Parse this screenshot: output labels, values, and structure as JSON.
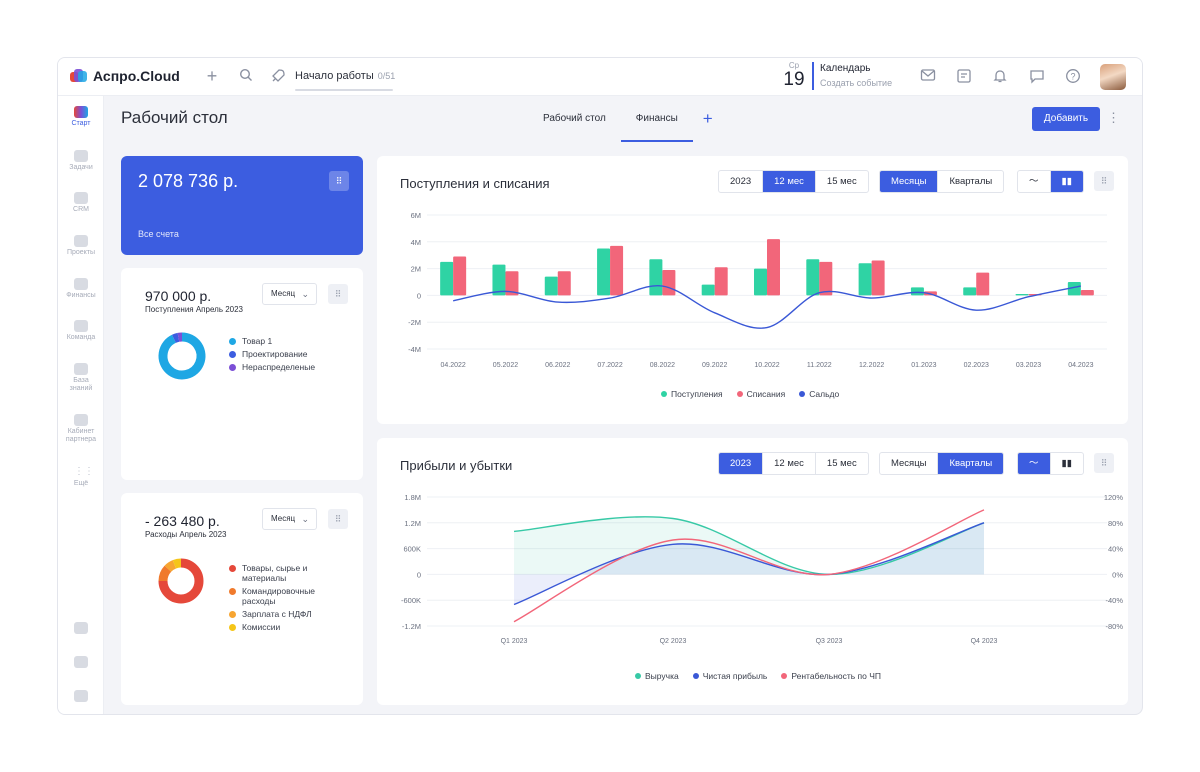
{
  "header": {
    "logo_text": "Аспро.Cloud",
    "start_label": "Начало работы",
    "start_count": "0/51",
    "calendar": {
      "weekday": "Ср",
      "day": "19",
      "title": "Календарь",
      "subtitle": "Создать событие"
    }
  },
  "sidebar": {
    "items": [
      {
        "label": "Старт",
        "icon": "start-icon"
      },
      {
        "label": "Задачи",
        "icon": "tasks-icon"
      },
      {
        "label": "CRM",
        "icon": "crm-icon"
      },
      {
        "label": "Проекты",
        "icon": "projects-icon"
      },
      {
        "label": "Финансы",
        "icon": "finance-icon"
      },
      {
        "label": "Команда",
        "icon": "team-icon"
      },
      {
        "label": "База знаний",
        "icon": "knowledge-icon"
      },
      {
        "label": "Кабинет партнера",
        "icon": "partner-icon"
      },
      {
        "label": "Ещё",
        "icon": "more-icon"
      }
    ]
  },
  "page": {
    "title": "Рабочий стол",
    "tabs": [
      "Рабочий стол",
      "Финансы"
    ],
    "active_tab": 1,
    "add_button": "Добавить"
  },
  "accounts_card": {
    "amount": "2 078 736 р.",
    "label": "Все счета"
  },
  "income_card": {
    "amount": "970 000 р.",
    "subtitle": "Поступления Апрель 2023",
    "period": "Месяц",
    "legend": [
      {
        "label": "Товар 1",
        "color": "#1ea7e4",
        "share": 0.93
      },
      {
        "label": "Проектирование",
        "color": "#3c5de0",
        "share": 0.04
      },
      {
        "label": "Нераспределеные",
        "color": "#7b4fd6",
        "share": 0.03
      }
    ]
  },
  "expense_card": {
    "amount": "- 263 480 р.",
    "subtitle": "Расходы Апрель 2023",
    "period": "Месяц",
    "legend": [
      {
        "label": "Товары, сырье и материалы",
        "color": "#e5483a",
        "share": 0.75
      },
      {
        "label": "Командировочные расходы",
        "color": "#f07a2c",
        "share": 0.12
      },
      {
        "label": "Зарплата с НДФЛ",
        "color": "#f7a531",
        "share": 0.07
      },
      {
        "label": "Комиссии",
        "color": "#f5c518",
        "share": 0.06
      }
    ]
  },
  "cashflow": {
    "title": "Поступления и списания",
    "period_options": [
      "2023",
      "12 мес",
      "15 мес"
    ],
    "period_active": 1,
    "group_options": [
      "Месяцы",
      "Кварталы"
    ],
    "group_active": 0,
    "view_active": "bar"
  },
  "profit": {
    "title": "Прибыли и убытки",
    "period_options": [
      "2023",
      "12 мес",
      "15 мес"
    ],
    "period_active": 0,
    "group_options": [
      "Месяцы",
      "Кварталы"
    ],
    "group_active": 1,
    "view_active": "line"
  },
  "chart_data": [
    {
      "type": "bar",
      "title": "Поступления и списания",
      "categories": [
        "04.2022",
        "05.2022",
        "06.2022",
        "07.2022",
        "08.2022",
        "09.2022",
        "10.2022",
        "11.2022",
        "12.2022",
        "01.2023",
        "02.2023",
        "03.2023",
        "04.2023"
      ],
      "yticks": [
        "6M",
        "4M",
        "2M",
        "0",
        "-2M",
        "-4M"
      ],
      "ylim": [
        -4,
        6
      ],
      "series": [
        {
          "name": "Поступления",
          "color": "#2fd3a4",
          "values": [
            2.5,
            2.3,
            1.4,
            3.5,
            2.7,
            0.8,
            2.0,
            2.7,
            2.4,
            0.6,
            0.6,
            0.1,
            1.0
          ]
        },
        {
          "name": "Списания",
          "color": "#f2667a",
          "values": [
            2.9,
            1.8,
            1.8,
            3.7,
            1.9,
            2.1,
            4.2,
            2.5,
            2.6,
            0.3,
            1.7,
            0.1,
            0.4
          ]
        },
        {
          "name": "Сальдо",
          "color": "#3a58d6",
          "type": "line",
          "values": [
            -0.4,
            0.3,
            -0.5,
            -0.2,
            0.7,
            -1.3,
            -2.4,
            0.2,
            -0.2,
            0.2,
            -1.1,
            -0.1,
            0.7
          ]
        }
      ],
      "legend_position": "bottom"
    },
    {
      "type": "line",
      "title": "Прибыли и убытки",
      "categories": [
        "Q1 2023",
        "Q2 2023",
        "Q3 2023",
        "Q4 2023"
      ],
      "yticks_left": [
        "1.8M",
        "1.2M",
        "600K",
        "0",
        "-600K",
        "-1.2M"
      ],
      "yticks_right": [
        "120%",
        "80%",
        "40%",
        "0%",
        "-40%",
        "-80%"
      ],
      "ylim": [
        -1.2,
        1.8
      ],
      "series": [
        {
          "name": "Выручка",
          "color": "#37c9a6",
          "values": [
            1.0,
            1.3,
            0.0,
            1.2
          ]
        },
        {
          "name": "Чистая прибыль",
          "color": "#3a58d6",
          "values": [
            -0.7,
            0.7,
            0.0,
            1.2
          ]
        },
        {
          "name": "Рентабельность по ЧП",
          "color": "#f2667a",
          "values": [
            -1.1,
            0.8,
            0.0,
            1.5
          ]
        }
      ],
      "legend_position": "bottom"
    }
  ]
}
